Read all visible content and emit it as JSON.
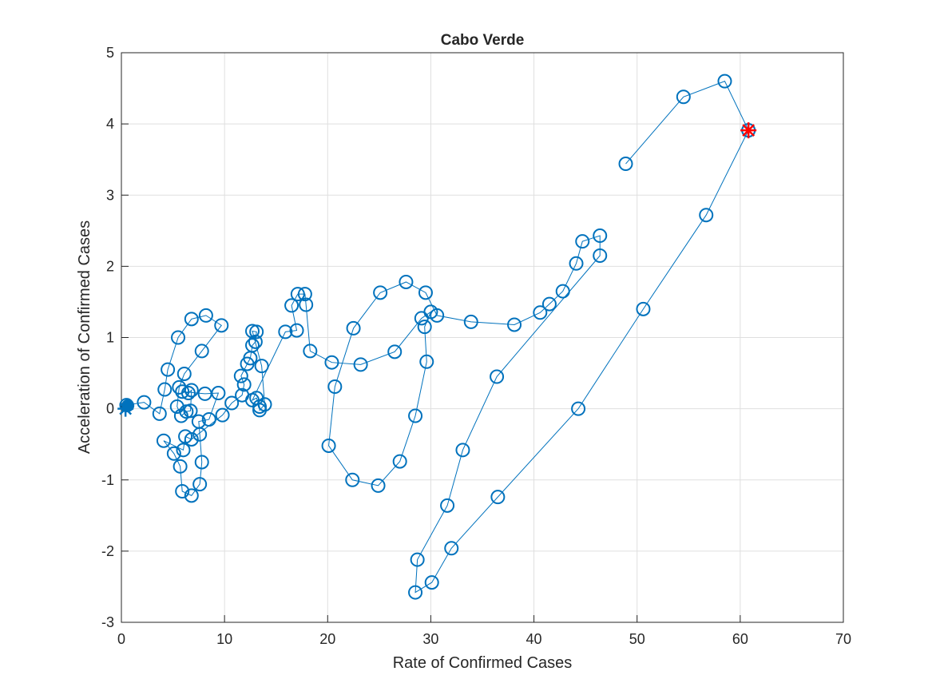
{
  "chart_data": {
    "type": "line",
    "title": "Cabo Verde",
    "x_label": "Rate of Confirmed Cases",
    "y_label": "Acceleration of Confirmed Cases",
    "xlim": [
      0,
      70
    ],
    "xticks": [
      0,
      10,
      20,
      30,
      40,
      50,
      60,
      70
    ],
    "ylim": [
      -3,
      5
    ],
    "yticks": [
      -3,
      -2,
      -1,
      0,
      1,
      2,
      3,
      4,
      5
    ],
    "grid": true,
    "series": [
      {
        "color": "#0072bd",
        "marker": "circle",
        "x": [
          0.5,
          2.2,
          3.7,
          4.2,
          4.5,
          5.5,
          6.8,
          8.2,
          9.7,
          7.8,
          6.1,
          5.6,
          5.4,
          5.8,
          6.3,
          6.7,
          6.8,
          6.5,
          5.9,
          8.1,
          9.4,
          8.5,
          7.5,
          7.6,
          7.8,
          7.6,
          6.8,
          5.9,
          5.7,
          5.1,
          4.1,
          6.0,
          6.2,
          6.8,
          9.8,
          10.7,
          11.7,
          11.9,
          11.6,
          12.2,
          12.5,
          12.7,
          13.0,
          13.1,
          12.7,
          13.6,
          13.9,
          13.4,
          13.4,
          13.1,
          12.7,
          15.9,
          17.0,
          16.5,
          17.1,
          17.8,
          17.9,
          18.3,
          20.4,
          23.2,
          26.5,
          29.1,
          30.0,
          29.4,
          29.6,
          28.5,
          27.0,
          24.9,
          22.4,
          20.1,
          20.7,
          22.5,
          25.1,
          27.6,
          29.5,
          30.6,
          33.9,
          38.1,
          40.6,
          41.5,
          42.8,
          44.1,
          44.7,
          46.4,
          46.4,
          36.4,
          33.1,
          31.6,
          28.7,
          28.5,
          30.1,
          32.0,
          36.5,
          44.3,
          50.6,
          56.7,
          60.8,
          58.5,
          54.5,
          48.9
        ],
        "values": [
          0.05,
          0.09,
          -0.07,
          0.27,
          0.55,
          1.0,
          1.26,
          1.31,
          1.17,
          0.81,
          0.49,
          0.3,
          0.03,
          -0.1,
          -0.04,
          -0.03,
          0.26,
          0.22,
          0.24,
          0.21,
          0.22,
          -0.15,
          -0.18,
          -0.36,
          -0.75,
          -1.06,
          -1.22,
          -1.16,
          -0.81,
          -0.63,
          -0.45,
          -0.58,
          -0.39,
          -0.43,
          -0.09,
          0.08,
          0.19,
          0.34,
          0.46,
          0.63,
          0.71,
          0.89,
          0.94,
          1.08,
          1.09,
          0.6,
          0.06,
          -0.02,
          0.03,
          0.15,
          0.12,
          1.08,
          1.1,
          1.45,
          1.61,
          1.61,
          1.46,
          0.81,
          0.65,
          0.62,
          0.8,
          1.27,
          1.36,
          1.15,
          0.66,
          -0.1,
          -0.74,
          -1.08,
          -1.0,
          -0.52,
          0.31,
          1.13,
          1.63,
          1.78,
          1.63,
          1.31,
          1.22,
          1.18,
          1.35,
          1.47,
          1.65,
          2.04,
          2.35,
          2.43,
          2.15,
          0.45,
          -0.58,
          -1.36,
          -2.12,
          -2.58,
          -2.44,
          -1.96,
          -1.24,
          0.0,
          1.4,
          2.72,
          3.91,
          4.6,
          4.38,
          3.44
        ]
      },
      {
        "color": "#0072bd",
        "marker": "filled-star",
        "x": [
          0.4
        ],
        "values": [
          0.0
        ]
      },
      {
        "color": "#ff0000",
        "marker": "star",
        "x": [
          60.8
        ],
        "values": [
          3.91
        ]
      }
    ]
  }
}
